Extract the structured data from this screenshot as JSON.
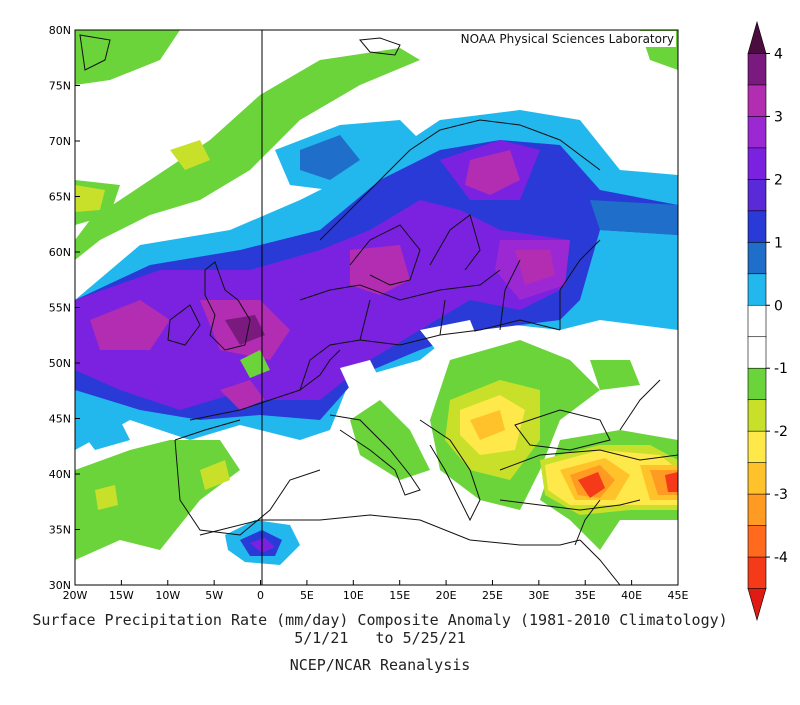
{
  "credit": "NOAA Physical Sciences Laboratory",
  "title_line1": "Surface Precipitation Rate (mm/day) Composite Anomaly (1981-2010 Climatology)",
  "title_line2": "5/1/21   to 5/25/21",
  "source": "NCEP/NCAR Reanalysis",
  "lon_labels": [
    "20W",
    "15W",
    "10W",
    "5W",
    "0",
    "5E",
    "10E",
    "15E",
    "20E",
    "25E",
    "30E",
    "35E",
    "40E",
    "45E"
  ],
  "lat_labels": [
    "80N",
    "75N",
    "70N",
    "65N",
    "60N",
    "55N",
    "50N",
    "45N",
    "40N",
    "35N",
    "30N"
  ],
  "colorbar": {
    "ticks": [
      "4",
      "3",
      "2",
      "1",
      "0",
      "-1",
      "-2",
      "-3",
      "-4"
    ],
    "colors": [
      "#4b0d3f",
      "#7a1a7f",
      "#b22db2",
      "#9c28d4",
      "#7a22e0",
      "#5a2ad8",
      "#2a3ad6",
      "#1f6ec9",
      "#22b8ee",
      "#ffffff",
      "#ffffff",
      "#6ad43a",
      "#c8e02a",
      "#ffe84a",
      "#ffc22a",
      "#ff9a22",
      "#ff6a1e",
      "#f43a18",
      "#e01b14"
    ]
  },
  "chart_data": {
    "type": "heatmap",
    "variable": "Surface Precipitation Rate (mm/day) Composite Anomaly",
    "period": "5/1/21 to 5/25/21",
    "lon_range": [
      -20,
      45
    ],
    "lat_range": [
      30,
      80
    ],
    "color_scale": [
      -4,
      4
    ]
  }
}
